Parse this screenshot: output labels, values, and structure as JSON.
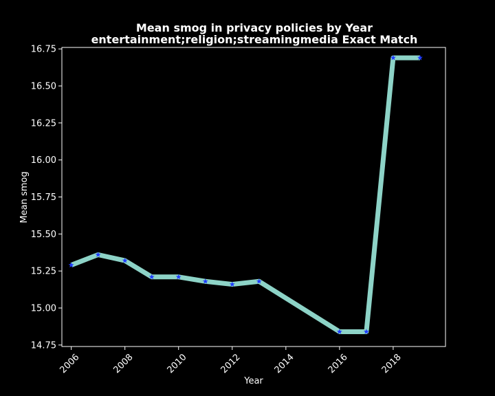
{
  "chart_data": {
    "type": "line",
    "title": "Mean smog in privacy policies by Year",
    "subtitle": "entertainment;religion;streamingmedia Exact Match",
    "xlabel": "Year",
    "ylabel": "Mean smog",
    "xlim": [
      2005.65,
      2019.95
    ],
    "ylim": [
      14.74,
      16.76
    ],
    "x_ticks": [
      2006,
      2008,
      2010,
      2012,
      2014,
      2016,
      2018
    ],
    "y_ticks": [
      14.75,
      15.0,
      15.25,
      15.5,
      15.75,
      16.0,
      16.25,
      16.5,
      16.75
    ],
    "y_tick_labels": [
      "14.75",
      "15.00",
      "15.25",
      "15.50",
      "15.75",
      "16.00",
      "16.25",
      "16.50",
      "16.75"
    ],
    "grid": false,
    "legend": "none",
    "colors": {
      "line": "#8dd3c7",
      "marker": "#1f3cff",
      "background": "#000000",
      "text": "#ffffff"
    },
    "x": [
      2006,
      2007,
      2008,
      2009,
      2010,
      2011,
      2012,
      2013,
      2016,
      2017,
      2018,
      2019
    ],
    "values": [
      15.29,
      15.36,
      15.32,
      15.21,
      15.21,
      15.18,
      15.16,
      15.18,
      14.84,
      14.84,
      16.69,
      16.69
    ]
  }
}
